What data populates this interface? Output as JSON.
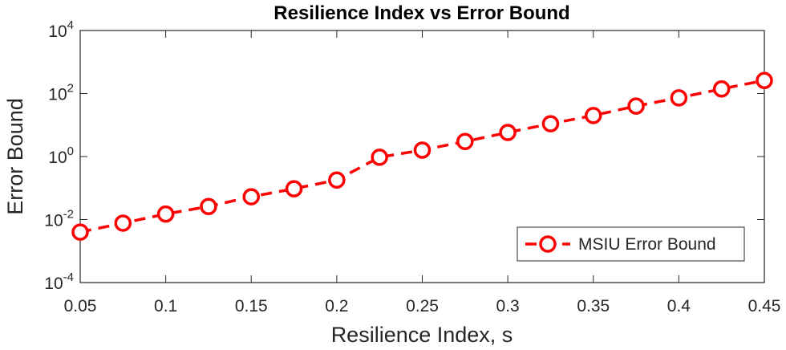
{
  "chart_data": {
    "type": "line",
    "title": "Resilience Index vs Error Bound",
    "x_label": "Resilience Index, s",
    "y_label": "Error Bound",
    "x": [
      0.05,
      0.075,
      0.1,
      0.125,
      0.15,
      0.175,
      0.2,
      0.225,
      0.25,
      0.275,
      0.3,
      0.325,
      0.35,
      0.375,
      0.4,
      0.425,
      0.45
    ],
    "series": [
      {
        "name": "MSIU Error Bound",
        "color": "#ff0000",
        "values": [
          0.004,
          0.0077,
          0.015,
          0.026,
          0.053,
          0.095,
          0.18,
          0.95,
          1.6,
          3.0,
          5.8,
          11,
          20,
          40,
          73,
          140,
          260
        ]
      }
    ],
    "xlim": [
      0.05,
      0.45
    ],
    "xticks": [
      0.05,
      0.1,
      0.15,
      0.2,
      0.25,
      0.3,
      0.35,
      0.4,
      0.45
    ],
    "ylim": [
      0.0001,
      10000
    ],
    "y_scale": "log",
    "yticks": [
      {
        "value": 0.0001,
        "label": "10^-4"
      },
      {
        "value": 0.01,
        "label": "10^-2"
      },
      {
        "value": 1,
        "label": "10^0"
      },
      {
        "value": 100,
        "label": "10^2"
      },
      {
        "value": 10000,
        "label": "10^4"
      }
    ],
    "legend_position": "lower right"
  }
}
